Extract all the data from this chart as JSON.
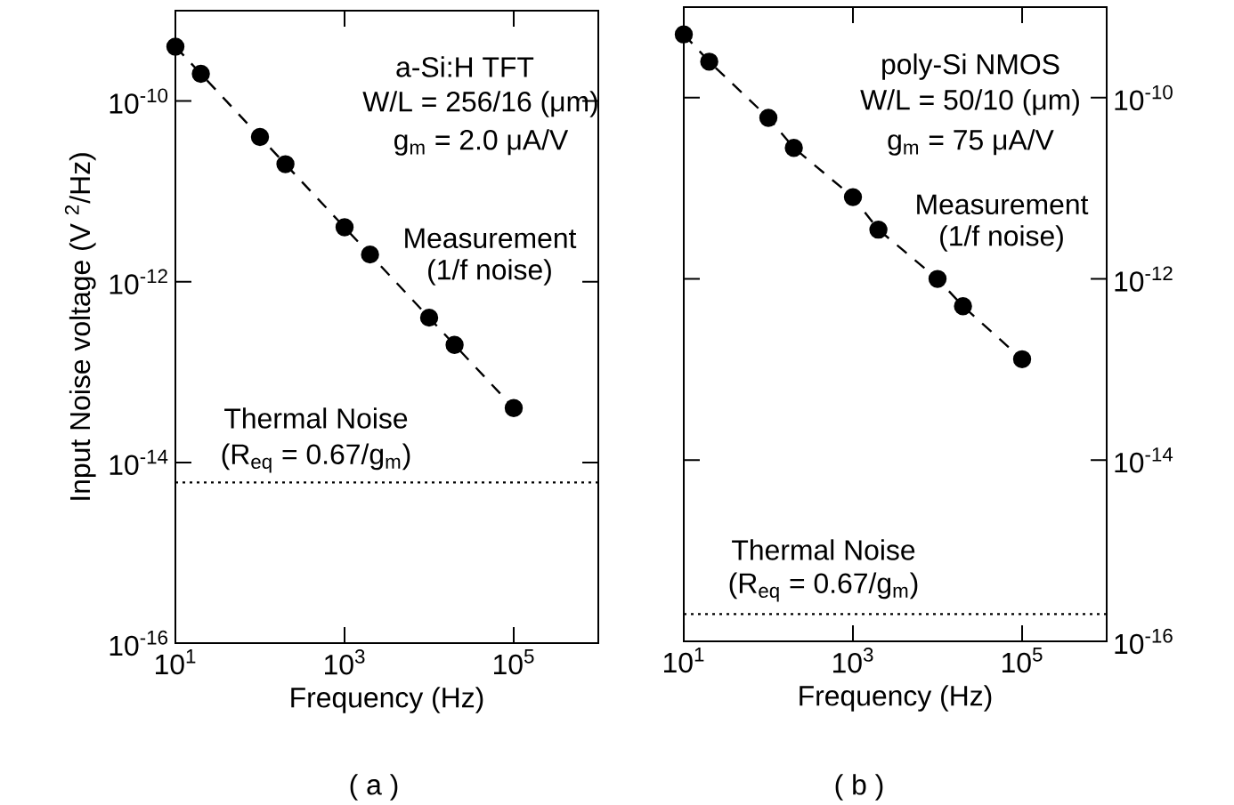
{
  "chart_data": [
    {
      "type": "line",
      "xlabel": "Frequency  (Hz)",
      "ylabel": "Input Noise voltage (V $^{2}$/Hz)",
      "log": "xy",
      "marker": "circle",
      "line_style": "dashed",
      "xlim": [
        10,
        1000000
      ],
      "ylim": [
        1e-16,
        1e-09
      ],
      "xticks": [
        {
          "value": 10,
          "label": "10$^{1}$"
        },
        {
          "value": 1000,
          "label": "10$^{3}$"
        },
        {
          "value": 100000,
          "label": "10$^{5}$"
        }
      ],
      "yticks": [
        {
          "value": 1e-16,
          "label": "10$^{-16}$"
        },
        {
          "value": 1e-14,
          "label": "10$^{-14}$"
        },
        {
          "value": 1e-12,
          "label": "10$^{-12}$"
        },
        {
          "value": 1e-10,
          "label": "10$^{-10}$"
        }
      ],
      "x": [
        10,
        20,
        100,
        200,
        1000,
        2000,
        10000,
        20000,
        100000
      ],
      "series": [
        {
          "color": "#000000",
          "values": [
            4e-10,
            2e-10,
            4e-11,
            2e-11,
            4e-12,
            2e-12,
            4e-13,
            2e-13,
            4e-14
          ]
        }
      ],
      "ref_lines": [
        {
          "axis": "y",
          "value": 6e-15,
          "color": "#000000",
          "line_style": "dotted"
        }
      ],
      "annotations": [
        "a-Si:H TFT",
        "W/L  =  256/16  (μm)",
        "g$_{m}$  =  2.0  μA/V",
        "Measurement",
        "(1/f  noise)",
        "Thermal Noise",
        "(R$_{eq}$ = 0.67/g$_{m}$)",
        "( a )"
      ]
    },
    {
      "type": "line",
      "xlabel": "Frequency  (Hz)",
      "log": "xy",
      "marker": "circle",
      "line_style": "dashed",
      "xlim": [
        10,
        1000000
      ],
      "ylim": [
        1e-16,
        1e-09
      ],
      "xticks": [
        {
          "value": 10,
          "label": "10$^{1}$"
        },
        {
          "value": 1000,
          "label": "10$^{3}$"
        },
        {
          "value": 100000,
          "label": "10$^{5}$"
        }
      ],
      "yticks": [
        {
          "value": 1e-16,
          "label": "10$^{-16}$"
        },
        {
          "value": 1e-14,
          "label": "10$^{-14}$"
        },
        {
          "value": 1e-12,
          "label": "10$^{-12}$"
        },
        {
          "value": 1e-10,
          "label": "10$^{-10}$"
        }
      ],
      "x": [
        10,
        20,
        100,
        200,
        1000,
        2000,
        10000,
        20000,
        100000
      ],
      "series": [
        {
          "color": "#000000",
          "values": [
            5e-10,
            2.5e-10,
            6e-11,
            2.8e-11,
            8e-12,
            3.5e-12,
            1e-12,
            5e-13,
            1.3e-13
          ]
        }
      ],
      "ref_lines": [
        {
          "axis": "y",
          "value": 2e-16,
          "color": "#000000",
          "line_style": "dotted"
        }
      ],
      "annotations": [
        "poly-Si NMOS",
        "W/L  =  50/10  (μm)",
        "g$_{m}$  =  75  μA/V",
        "Measurement",
        "(1/f  noise)",
        "Thermal Noise",
        "(R$_{eq}$ = 0.67/g$_{m}$)",
        "( b )"
      ]
    }
  ]
}
